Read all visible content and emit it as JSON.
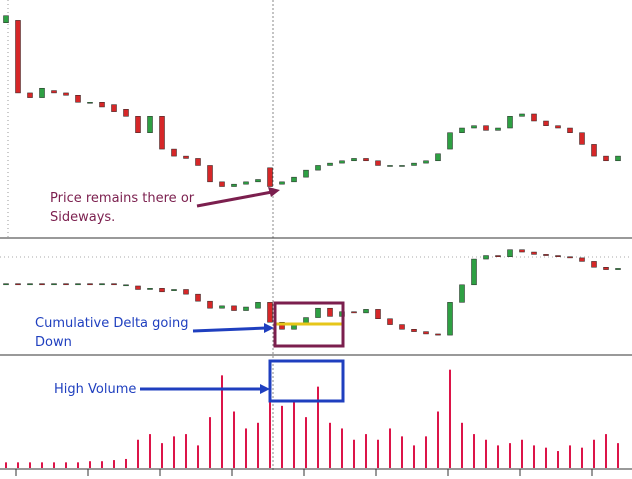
{
  "chart_data": [
    {
      "type": "candlestick",
      "ylim": [
        0,
        100
      ],
      "color_up": "#2ea043",
      "color_down": "#d62728",
      "open": [
        92,
        93,
        62,
        60,
        63,
        62,
        61,
        58,
        58,
        57,
        55,
        52,
        45,
        52,
        38,
        35,
        34,
        31,
        24,
        22,
        23,
        24,
        30,
        23,
        24,
        26,
        29,
        31,
        32,
        33,
        34,
        33,
        31,
        31,
        31,
        32,
        33,
        38,
        45,
        47,
        48,
        46,
        47,
        52,
        53,
        50,
        48,
        47,
        45,
        40,
        35,
        33
      ],
      "close": [
        95,
        62,
        60,
        64,
        62,
        61,
        58,
        58,
        56,
        54,
        52,
        45,
        52,
        38,
        35,
        34,
        31,
        24,
        22,
        23,
        24,
        25,
        22,
        24,
        26,
        29,
        31,
        32,
        33,
        34,
        33,
        31,
        31,
        31,
        32,
        33,
        36,
        45,
        47,
        48,
        46,
        47,
        52,
        53,
        50,
        48,
        47,
        45,
        40,
        35,
        33,
        35
      ]
    },
    {
      "type": "candlestick",
      "ylim": [
        0,
        100
      ],
      "color_up": "#2ea043",
      "color_down": "#d62728",
      "open": [
        60,
        61,
        60,
        61,
        60,
        61,
        60,
        61,
        60,
        61,
        60,
        59,
        56,
        57,
        55,
        56,
        52,
        46,
        40,
        42,
        38,
        40,
        45,
        28,
        22,
        27,
        32,
        40,
        33,
        37,
        36,
        39,
        31,
        26,
        22,
        20,
        18,
        17,
        45,
        60,
        82,
        85,
        84,
        90,
        88,
        86,
        85,
        84,
        83,
        80,
        75,
        73
      ],
      "close": [
        61,
        60,
        61,
        60,
        61,
        60,
        61,
        60,
        61,
        60,
        60,
        56,
        57,
        54,
        56,
        52,
        46,
        40,
        42,
        38,
        41,
        45,
        28,
        22,
        27,
        32,
        40,
        33,
        37,
        36,
        39,
        31,
        26,
        22,
        20,
        18,
        17,
        45,
        60,
        82,
        85,
        84,
        90,
        88,
        86,
        85,
        84,
        83,
        80,
        75,
        73,
        74
      ]
    },
    {
      "type": "bar",
      "ylim": [
        0,
        100
      ],
      "color": "#dc1448",
      "values": [
        5,
        5,
        5,
        5,
        5,
        5,
        5,
        6,
        6,
        7,
        8,
        25,
        30,
        22,
        28,
        30,
        20,
        45,
        82,
        50,
        35,
        40,
        94,
        55,
        60,
        45,
        72,
        40,
        35,
        25,
        30,
        25,
        35,
        28,
        20,
        28,
        50,
        87,
        40,
        30,
        25,
        20,
        22,
        25,
        20,
        18,
        15,
        20,
        18,
        25,
        30,
        22
      ]
    }
  ],
  "annotations": {
    "price": [
      "Price remains there or",
      "Sideways."
    ],
    "delta": [
      "Cumulative Delta going",
      "Down"
    ],
    "volume": "High Volume"
  }
}
